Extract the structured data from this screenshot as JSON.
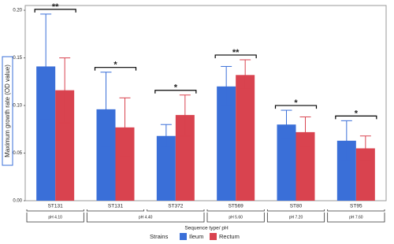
{
  "chart_data": {
    "type": "bar",
    "y_label": "Maximum growth rate (OD value)",
    "x_label": "Sequence type/ pH",
    "legend_title": "Strains",
    "categories": [
      "ST131",
      "ST131",
      "ST372",
      "ST569",
      "ST80",
      "ST95"
    ],
    "category_groups": [
      "pH 4.10",
      "pH 4.40",
      "pH 4.40",
      "pH 5.60",
      "pH 7.20",
      "pH 7.60"
    ],
    "series": [
      {
        "name": "Ileum",
        "color": "#3a6fd8",
        "values": [
          0.141,
          0.096,
          0.068,
          0.12,
          0.08,
          0.063
        ],
        "error_low": [
          0.085,
          0.057,
          0.056,
          0.1,
          0.065,
          0.043
        ],
        "error_high": [
          0.196,
          0.135,
          0.08,
          0.141,
          0.095,
          0.084
        ]
      },
      {
        "name": "Rectum",
        "color": "#d9434f",
        "values": [
          0.116,
          0.077,
          0.09,
          0.132,
          0.072,
          0.055
        ],
        "error_low": [
          0.082,
          0.046,
          0.068,
          0.117,
          0.056,
          0.042
        ],
        "error_high": [
          0.15,
          0.108,
          0.111,
          0.148,
          0.088,
          0.068
        ]
      }
    ],
    "significance": [
      "**",
      "*",
      "*",
      "**",
      "*",
      "*"
    ],
    "ylim": [
      0,
      0.205
    ],
    "yticks": [
      {
        "value": 0,
        "label": "0.00"
      },
      {
        "value": 0.05,
        "label": "0.05"
      },
      {
        "value": 0.1,
        "label": "0.10"
      },
      {
        "value": 0.15,
        "label": "0.15"
      },
      {
        "value": 0.2,
        "label": "0.20"
      }
    ]
  }
}
